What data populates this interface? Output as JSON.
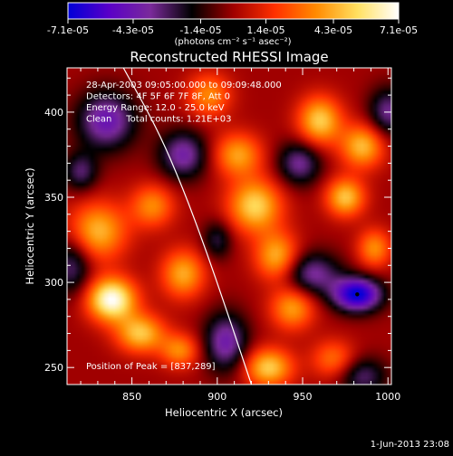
{
  "chart_data": {
    "type": "heatmap",
    "title": "Reconstructed RHESSI Image",
    "xlabel": "Heliocentric X (arcsec)",
    "ylabel": "Heliocentric Y (arcsec)",
    "xlim": [
      812,
      1002
    ],
    "ylim": [
      240,
      426
    ],
    "x_ticks": [
      850,
      900,
      950,
      1000
    ],
    "y_ticks": [
      250,
      300,
      350,
      400
    ],
    "x_tick_labels": [
      "850",
      "900",
      "950",
      "1000"
    ],
    "y_tick_labels": [
      "250",
      "300",
      "350",
      "400"
    ],
    "grid": false,
    "colorbar": {
      "range": [
        -7.1e-05,
        7.1e-05
      ],
      "tick_values": [
        -7.1e-05,
        -4.3e-05,
        -1.4e-05,
        1.4e-05,
        4.3e-05,
        7.1e-05
      ],
      "tick_labels": [
        "-7.1e-05",
        "-4.3e-05",
        "-1.4e-05",
        "1.4e-05",
        "4.3e-05",
        "7.1e-05"
      ],
      "unit_label": "(photons cm⁻² s⁻¹ asec⁻²)",
      "colormap": [
        "#0000d8",
        "#5a00c8",
        "#7a2a9a",
        "#000000",
        "#a00000",
        "#ff3000",
        "#ff8a00",
        "#ffe060",
        "#ffffff"
      ]
    },
    "annotations": [
      "28-Apr-2003 09:05:00.000 to 09:09:48.000",
      "Detectors: 4F 5F 6F 7F 8F, Att 0",
      "Energy Range: 12.0 - 25.0 keV",
      "Clean     Total counts: 1.21E+03"
    ],
    "peak_label": "Position of Peak = [837,289]",
    "peak_position": [
      837,
      289
    ],
    "min_point": [
      982,
      293
    ],
    "limb_curve": [
      [
        845,
        426
      ],
      [
        865,
        390
      ],
      [
        880,
        355
      ],
      [
        893,
        320
      ],
      [
        905,
        285
      ],
      [
        916,
        252
      ],
      [
        920,
        240
      ]
    ],
    "sources": [
      {
        "x": 838,
        "y": 290,
        "amp": 7.1e-05,
        "sx": 10,
        "sy": 9
      },
      {
        "x": 830,
        "y": 330,
        "amp": 4.5e-05,
        "sx": 12,
        "sy": 12
      },
      {
        "x": 855,
        "y": 270,
        "amp": 4.8e-05,
        "sx": 10,
        "sy": 8
      },
      {
        "x": 880,
        "y": 305,
        "amp": 4.2e-05,
        "sx": 9,
        "sy": 10
      },
      {
        "x": 862,
        "y": 345,
        "amp": 3.5e-05,
        "sx": 9,
        "sy": 9
      },
      {
        "x": 922,
        "y": 345,
        "amp": 5.2e-05,
        "sx": 11,
        "sy": 11
      },
      {
        "x": 912,
        "y": 375,
        "amp": 4e-05,
        "sx": 10,
        "sy": 9
      },
      {
        "x": 935,
        "y": 315,
        "amp": 4.5e-05,
        "sx": 9,
        "sy": 10
      },
      {
        "x": 944,
        "y": 285,
        "amp": 4e-05,
        "sx": 9,
        "sy": 9
      },
      {
        "x": 930,
        "y": 250,
        "amp": 5e-05,
        "sx": 10,
        "sy": 8
      },
      {
        "x": 960,
        "y": 395,
        "amp": 5e-05,
        "sx": 9,
        "sy": 10
      },
      {
        "x": 985,
        "y": 380,
        "amp": 4.6e-05,
        "sx": 9,
        "sy": 9
      },
      {
        "x": 975,
        "y": 350,
        "amp": 4.8e-05,
        "sx": 8,
        "sy": 8
      },
      {
        "x": 992,
        "y": 320,
        "amp": 3.6e-05,
        "sx": 7,
        "sy": 8
      },
      {
        "x": 968,
        "y": 255,
        "amp": 3e-05,
        "sx": 9,
        "sy": 8
      },
      {
        "x": 895,
        "y": 410,
        "amp": 3.5e-05,
        "sx": 9,
        "sy": 9
      },
      {
        "x": 878,
        "y": 260,
        "amp": 3.5e-05,
        "sx": 8,
        "sy": 7
      },
      {
        "x": 982,
        "y": 293,
        "amp": -7.1e-05,
        "sx": 10,
        "sy": 7
      },
      {
        "x": 955,
        "y": 305,
        "amp": -3.8e-05,
        "sx": 12,
        "sy": 9
      },
      {
        "x": 835,
        "y": 395,
        "amp": -4.5e-05,
        "sx": 12,
        "sy": 12
      },
      {
        "x": 815,
        "y": 310,
        "amp": -3.2e-05,
        "sx": 8,
        "sy": 12
      },
      {
        "x": 880,
        "y": 375,
        "amp": -4e-05,
        "sx": 10,
        "sy": 10
      },
      {
        "x": 905,
        "y": 265,
        "amp": -4.2e-05,
        "sx": 9,
        "sy": 12
      },
      {
        "x": 948,
        "y": 370,
        "amp": -3.6e-05,
        "sx": 9,
        "sy": 9
      },
      {
        "x": 1000,
        "y": 400,
        "amp": -3.5e-05,
        "sx": 8,
        "sy": 10
      },
      {
        "x": 820,
        "y": 365,
        "amp": -3e-05,
        "sx": 7,
        "sy": 8
      },
      {
        "x": 985,
        "y": 245,
        "amp": -3e-05,
        "sx": 10,
        "sy": 8
      },
      {
        "x": 900,
        "y": 325,
        "amp": -2.5e-05,
        "sx": 6,
        "sy": 8
      }
    ]
  },
  "timestamp": "1-Jun-2013 23:08"
}
